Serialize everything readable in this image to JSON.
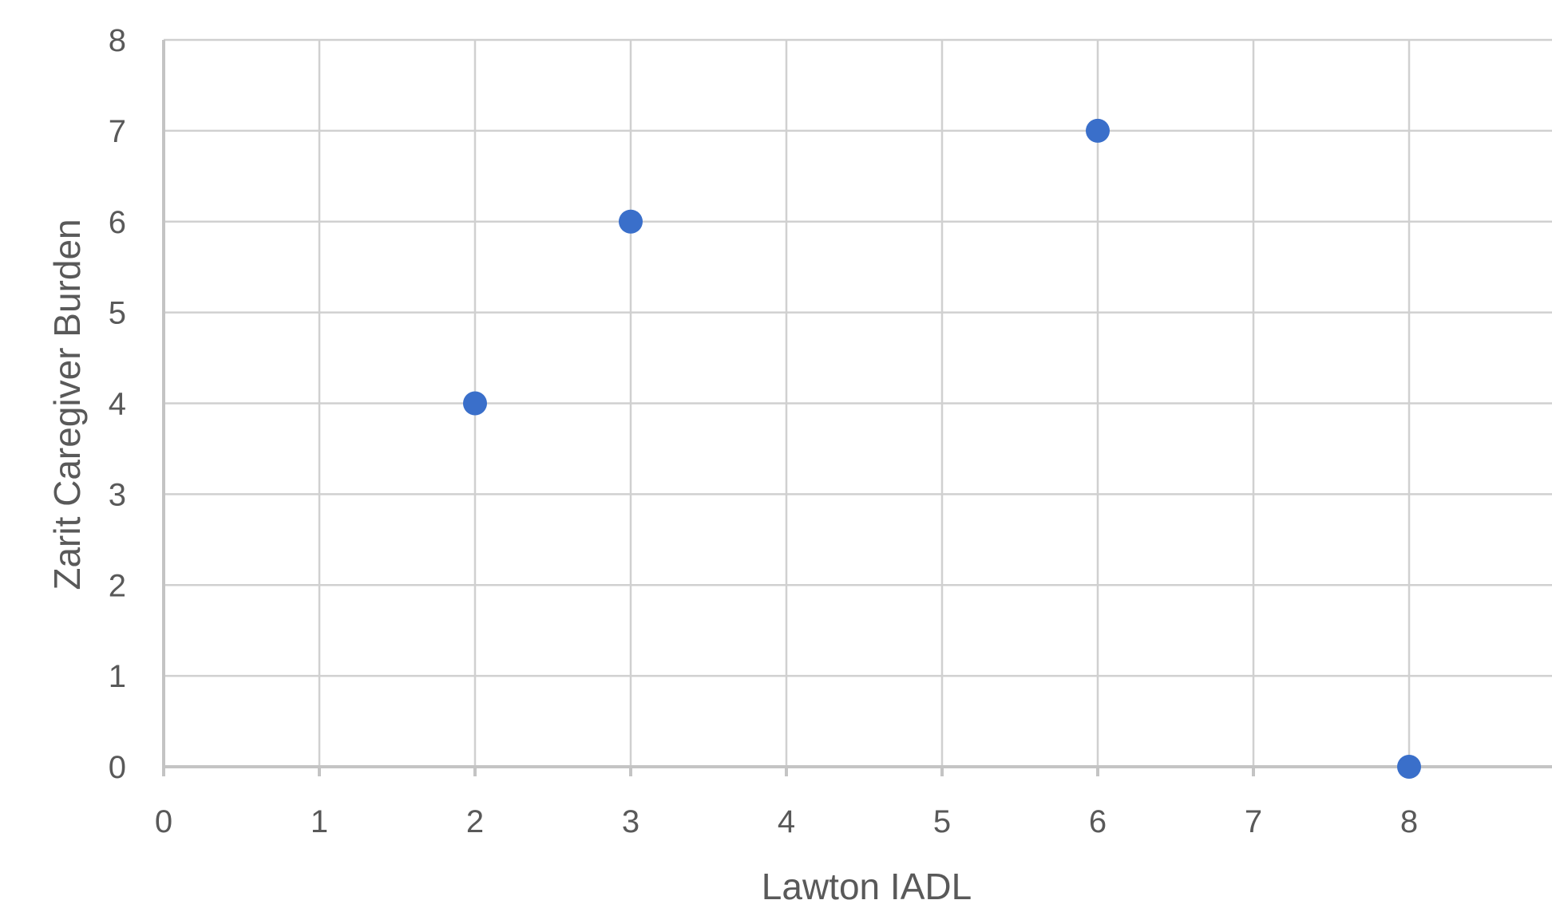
{
  "chart_data": {
    "type": "scatter",
    "title": "",
    "xlabel": "Lawton IADL",
    "ylabel": "Zarit Caregiver Burden",
    "xlim": [
      0,
      9
    ],
    "ylim": [
      0,
      8
    ],
    "x_ticks": [
      0,
      1,
      2,
      3,
      4,
      5,
      6,
      7,
      8
    ],
    "y_ticks": [
      0,
      1,
      2,
      3,
      4,
      5,
      6,
      7,
      8
    ],
    "grid": true,
    "legend": "none",
    "series": [
      {
        "color": "#3a6fca",
        "points": [
          {
            "x": 2,
            "y": 4
          },
          {
            "x": 3,
            "y": 6
          },
          {
            "x": 6,
            "y": 7
          },
          {
            "x": 8,
            "y": 0
          }
        ]
      }
    ]
  }
}
